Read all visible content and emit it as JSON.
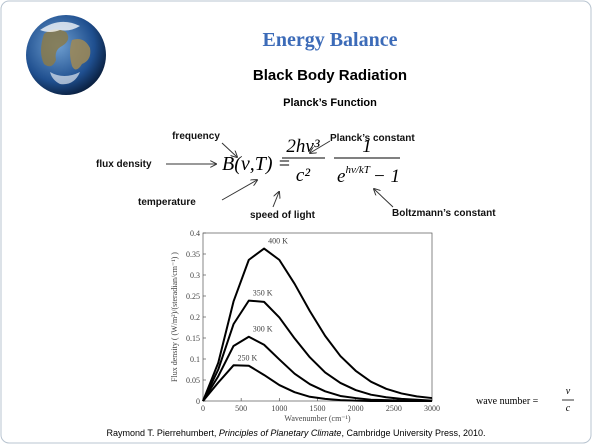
{
  "title": "Energy Balance",
  "subtitle": "Black Body Radiation",
  "formula_heading": "Planck’s Function",
  "formula": {
    "lhs": "B(ν,T) =",
    "num1": "2hν³",
    "den1": "c²",
    "num2": "1",
    "den2_base": "e",
    "den2_exp": "hν/kT",
    "den2_tail": "− 1"
  },
  "annotations": {
    "frequency": "frequency",
    "flux_density": "flux density",
    "temperature": "temperature",
    "speed_of_light": "speed of light",
    "plancks_constant": "Planck’s constant",
    "boltzmanns_constant": "Boltzmann’s constant"
  },
  "wave_number": {
    "label": "wave number =",
    "num": "ν",
    "den": "c"
  },
  "citation": {
    "author": "Raymond T. Pierrehumbert, ",
    "book": "Principles of Planetary Climate",
    "rest": ", Cambridge University Press,  2010."
  },
  "chart_data": {
    "type": "line",
    "x_label": "Wavenumber (cm⁻¹)",
    "y_label": "Flux density ( (W/m²)/(steradian/cm⁻¹) )",
    "x": [
      0,
      200,
      400,
      600,
      800,
      1000,
      1200,
      1400,
      1600,
      1800,
      2000,
      2200,
      2400,
      2600,
      2800,
      3000
    ],
    "series": [
      {
        "name": "400 K",
        "color": "#000000",
        "values": [
          0,
          0.091,
          0.237,
          0.336,
          0.363,
          0.336,
          0.279,
          0.214,
          0.155,
          0.107,
          0.072,
          0.046,
          0.029,
          0.018,
          0.011,
          0.007
        ]
      },
      {
        "name": "350 K",
        "color": "#000000",
        "values": [
          0,
          0.075,
          0.183,
          0.239,
          0.236,
          0.199,
          0.149,
          0.104,
          0.068,
          0.043,
          0.026,
          0.015,
          0.009,
          0.005,
          0.003,
          0.001
        ]
      },
      {
        "name": "300 K",
        "color": "#000000",
        "values": [
          0,
          0.059,
          0.131,
          0.153,
          0.134,
          0.099,
          0.065,
          0.04,
          0.023,
          0.012,
          0.007,
          0.003,
          0.002,
          0.001,
          0,
          0
        ]
      },
      {
        "name": "250 K",
        "color": "#000000",
        "values": [
          0,
          0.044,
          0.085,
          0.084,
          0.062,
          0.038,
          0.021,
          0.01,
          0.005,
          0.002,
          0.001,
          0,
          0,
          0,
          0,
          0
        ]
      }
    ],
    "xlim": [
      0,
      3000
    ],
    "xticks": [
      0,
      500,
      1000,
      1500,
      2000,
      2500,
      3000
    ],
    "ylim": [
      0,
      0.4
    ],
    "yticks": [
      0,
      0.05,
      0.1,
      0.15,
      0.2,
      0.25,
      0.3,
      0.35,
      0.4
    ]
  }
}
